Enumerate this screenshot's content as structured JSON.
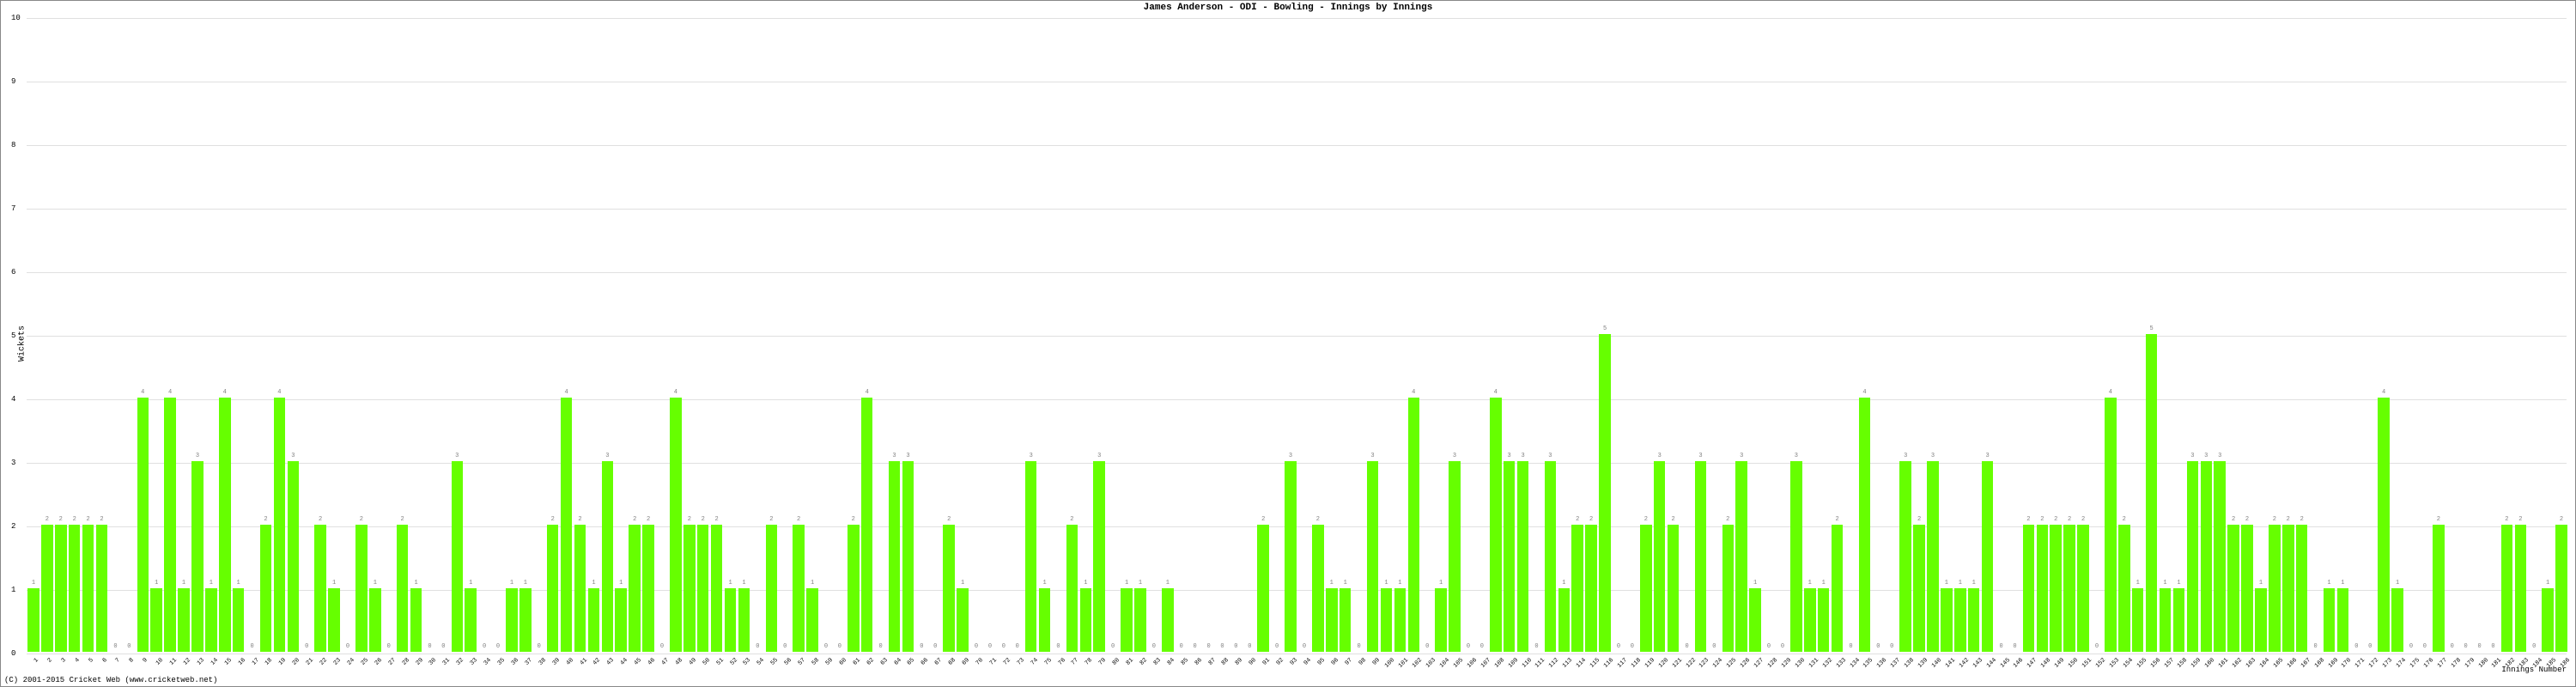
{
  "chart": {
    "type": "bar",
    "title": "James Anderson - ODI - Bowling - Innings by Innings",
    "ylabel": "Wickets",
    "xlabel": "Innings Number",
    "copyright": "(C) 2001-2015 Cricket Web (www.cricketweb.net)",
    "ylim": [
      0,
      10
    ],
    "ytick_step": 1,
    "bar_color": "#66ff00",
    "background_color": "#ffffff",
    "grid_color": "#e0e0e0",
    "label_color": "#808080",
    "border_color": "#888888",
    "title_fontsize": 11,
    "label_fontsize": 7,
    "axis_fontsize": 9,
    "bar_width_ratio": 0.85,
    "values": [
      1,
      2,
      2,
      2,
      2,
      2,
      0,
      0,
      4,
      1,
      4,
      1,
      3,
      1,
      4,
      1,
      0,
      2,
      4,
      3,
      0,
      2,
      1,
      0,
      2,
      1,
      0,
      2,
      1,
      0,
      0,
      3,
      1,
      0,
      0,
      1,
      1,
      0,
      2,
      4,
      2,
      1,
      3,
      1,
      2,
      2,
      0,
      4,
      2,
      2,
      2,
      1,
      1,
      0,
      2,
      0,
      2,
      1,
      0,
      0,
      2,
      4,
      0,
      3,
      3,
      0,
      0,
      2,
      1,
      0,
      0,
      0,
      0,
      3,
      1,
      0,
      2,
      1,
      3,
      0,
      1,
      1,
      0,
      1,
      0,
      0,
      0,
      0,
      0,
      0,
      2,
      0,
      3,
      0,
      2,
      1,
      1,
      0,
      3,
      1,
      1,
      4,
      0,
      1,
      3,
      0,
      0,
      4,
      3,
      3,
      0,
      3,
      1,
      2,
      2,
      5,
      0,
      0,
      2,
      3,
      2,
      0,
      3,
      0,
      2,
      3,
      1,
      0,
      0,
      3,
      1,
      1,
      2,
      0,
      4,
      0,
      0,
      3,
      2,
      3,
      1,
      1,
      1,
      3,
      0,
      0,
      2,
      2,
      2,
      2,
      2,
      0,
      4,
      2,
      1,
      5,
      1,
      1,
      3,
      3,
      3,
      2,
      2,
      1,
      2,
      2,
      2,
      0,
      1,
      1,
      0,
      0,
      4,
      1,
      0,
      0,
      2,
      0,
      0,
      0,
      0,
      2,
      2,
      0,
      1,
      2
    ]
  }
}
